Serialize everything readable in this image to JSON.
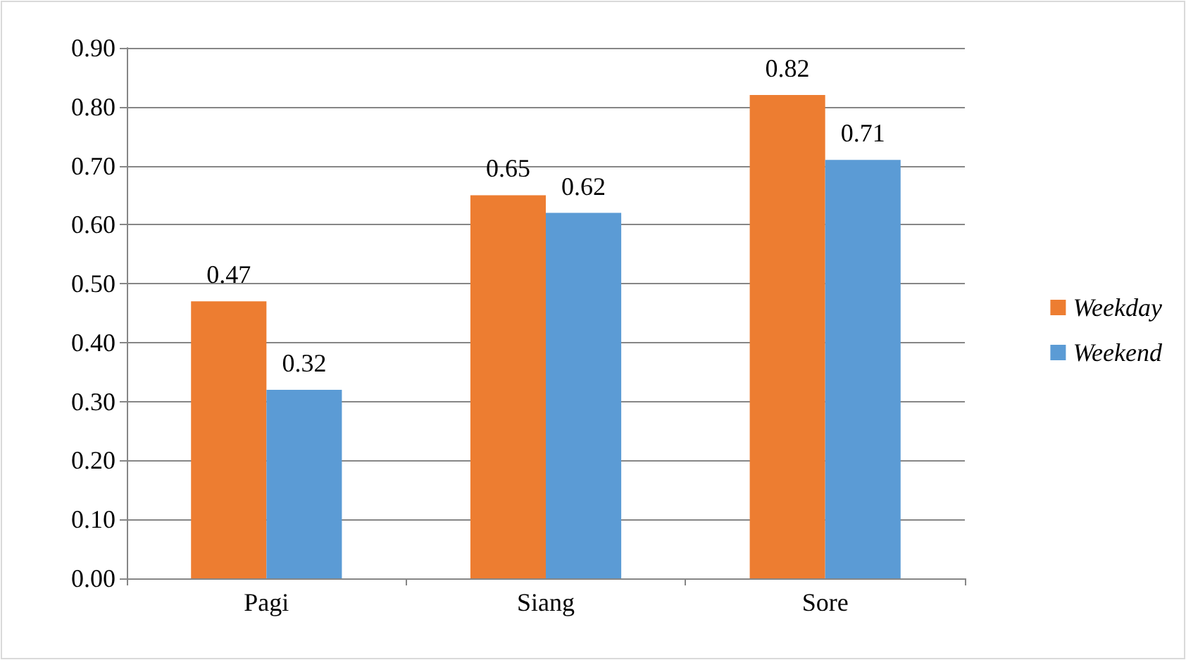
{
  "chart_data": {
    "type": "bar",
    "categories": [
      "Pagi",
      "Siang",
      "Sore"
    ],
    "series": [
      {
        "name": "Weekday",
        "color": "#ed7d31",
        "values": [
          0.47,
          0.65,
          0.82
        ]
      },
      {
        "name": "Weekend",
        "color": "#5b9bd5",
        "values": [
          0.32,
          0.62,
          0.71
        ]
      }
    ],
    "ylim": [
      0,
      0.9
    ],
    "yticks": [
      {
        "value": 0,
        "label": "0.00"
      },
      {
        "value": 0.1,
        "label": "0.10"
      },
      {
        "value": 0.2,
        "label": "0.20"
      },
      {
        "value": 0.3,
        "label": "0.30"
      },
      {
        "value": 0.4,
        "label": "0.40"
      },
      {
        "value": 0.5,
        "label": "0.50"
      },
      {
        "value": 0.6,
        "label": "0.60"
      },
      {
        "value": 0.7,
        "label": "0.70"
      },
      {
        "value": 0.8,
        "label": "0.80"
      },
      {
        "value": 0.9,
        "label": "0.90"
      }
    ],
    "grid": "y",
    "legend": "right",
    "data_labels": true
  }
}
